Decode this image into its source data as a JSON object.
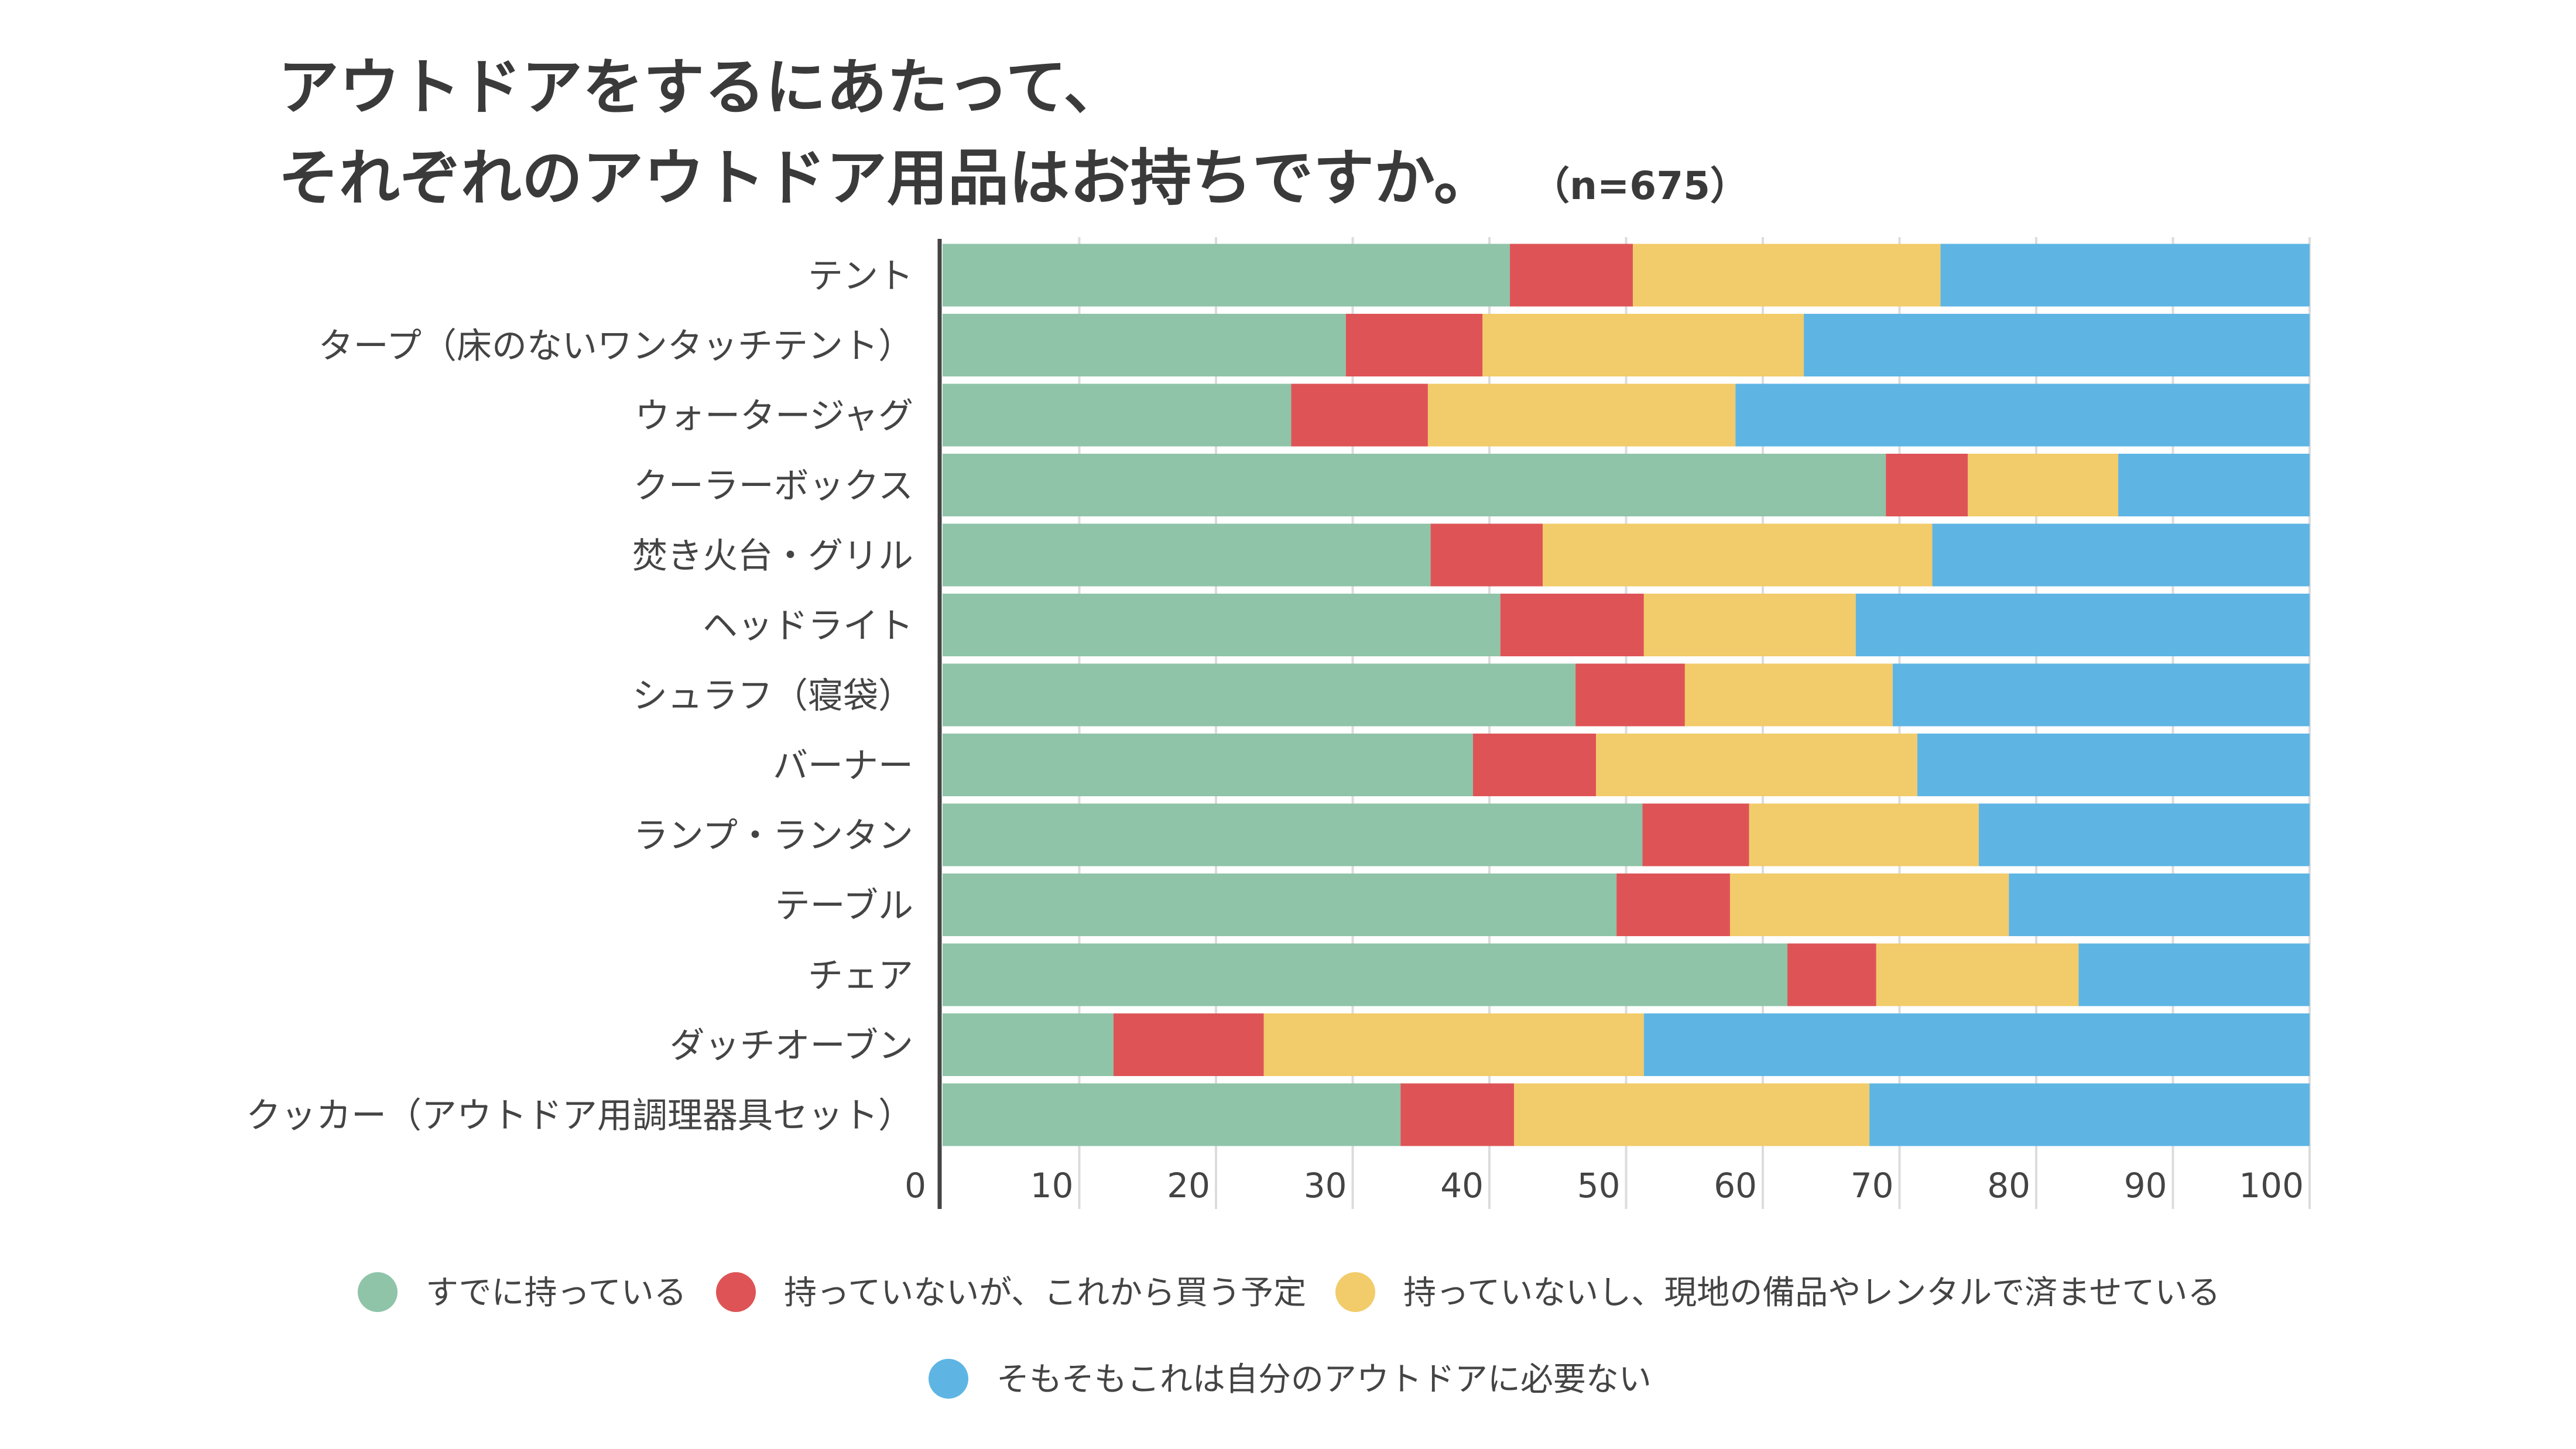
{
  "chart_data": {
    "type": "bar",
    "orientation": "horizontal",
    "stacked": true,
    "title_line1": "アウトドアをするにあたって、",
    "title_line2": "それぞれのアウトドア用品はお持ちですか。",
    "subtitle": "（n=675）",
    "xlabel": "",
    "ylabel": "",
    "xlim": [
      0,
      100
    ],
    "xticks": [
      "0",
      "10",
      "20",
      "30",
      "40",
      "50",
      "60",
      "70",
      "80",
      "90",
      "100"
    ],
    "grid": true,
    "legend_position": "bottom",
    "categories": [
      "テント",
      "タープ（床のないワンタッチテント）",
      "ウォータージャグ",
      "クーラーボックス",
      "焚き火台・グリル",
      "ヘッドライト",
      "シュラフ（寝袋）",
      "バーナー",
      "ランプ・ランタン",
      "テーブル",
      "チェア",
      "ダッチオーブン",
      "クッカー（アウトドア用調理器具セット）"
    ],
    "series": [
      {
        "name": "すでに持っている",
        "color": "#8fc4a8",
        "values": [
          41.5,
          29.5,
          25.5,
          69.0,
          35.7,
          40.8,
          46.3,
          38.8,
          51.2,
          49.3,
          61.8,
          12.5,
          33.5
        ]
      },
      {
        "name": "持っていないが、これから買う予定",
        "color": "#de5456",
        "values": [
          9.0,
          10.0,
          10.0,
          6.0,
          8.2,
          10.5,
          8.0,
          9.0,
          7.8,
          8.3,
          6.5,
          11.0,
          8.3
        ]
      },
      {
        "name": "持っていないし、現地の備品やレンタルで済ませている",
        "color": "#f2cb6a",
        "values": [
          22.5,
          23.5,
          22.5,
          11.0,
          28.5,
          15.5,
          15.2,
          23.5,
          16.8,
          20.4,
          14.8,
          27.8,
          26.0
        ]
      },
      {
        "name": "そもそもこれは自分のアウトドアに必要ない",
        "color": "#5eb5e4",
        "values": [
          27.0,
          37.0,
          42.0,
          14.0,
          27.6,
          33.2,
          30.5,
          28.7,
          24.2,
          22.0,
          16.9,
          48.7,
          32.2
        ]
      }
    ]
  }
}
